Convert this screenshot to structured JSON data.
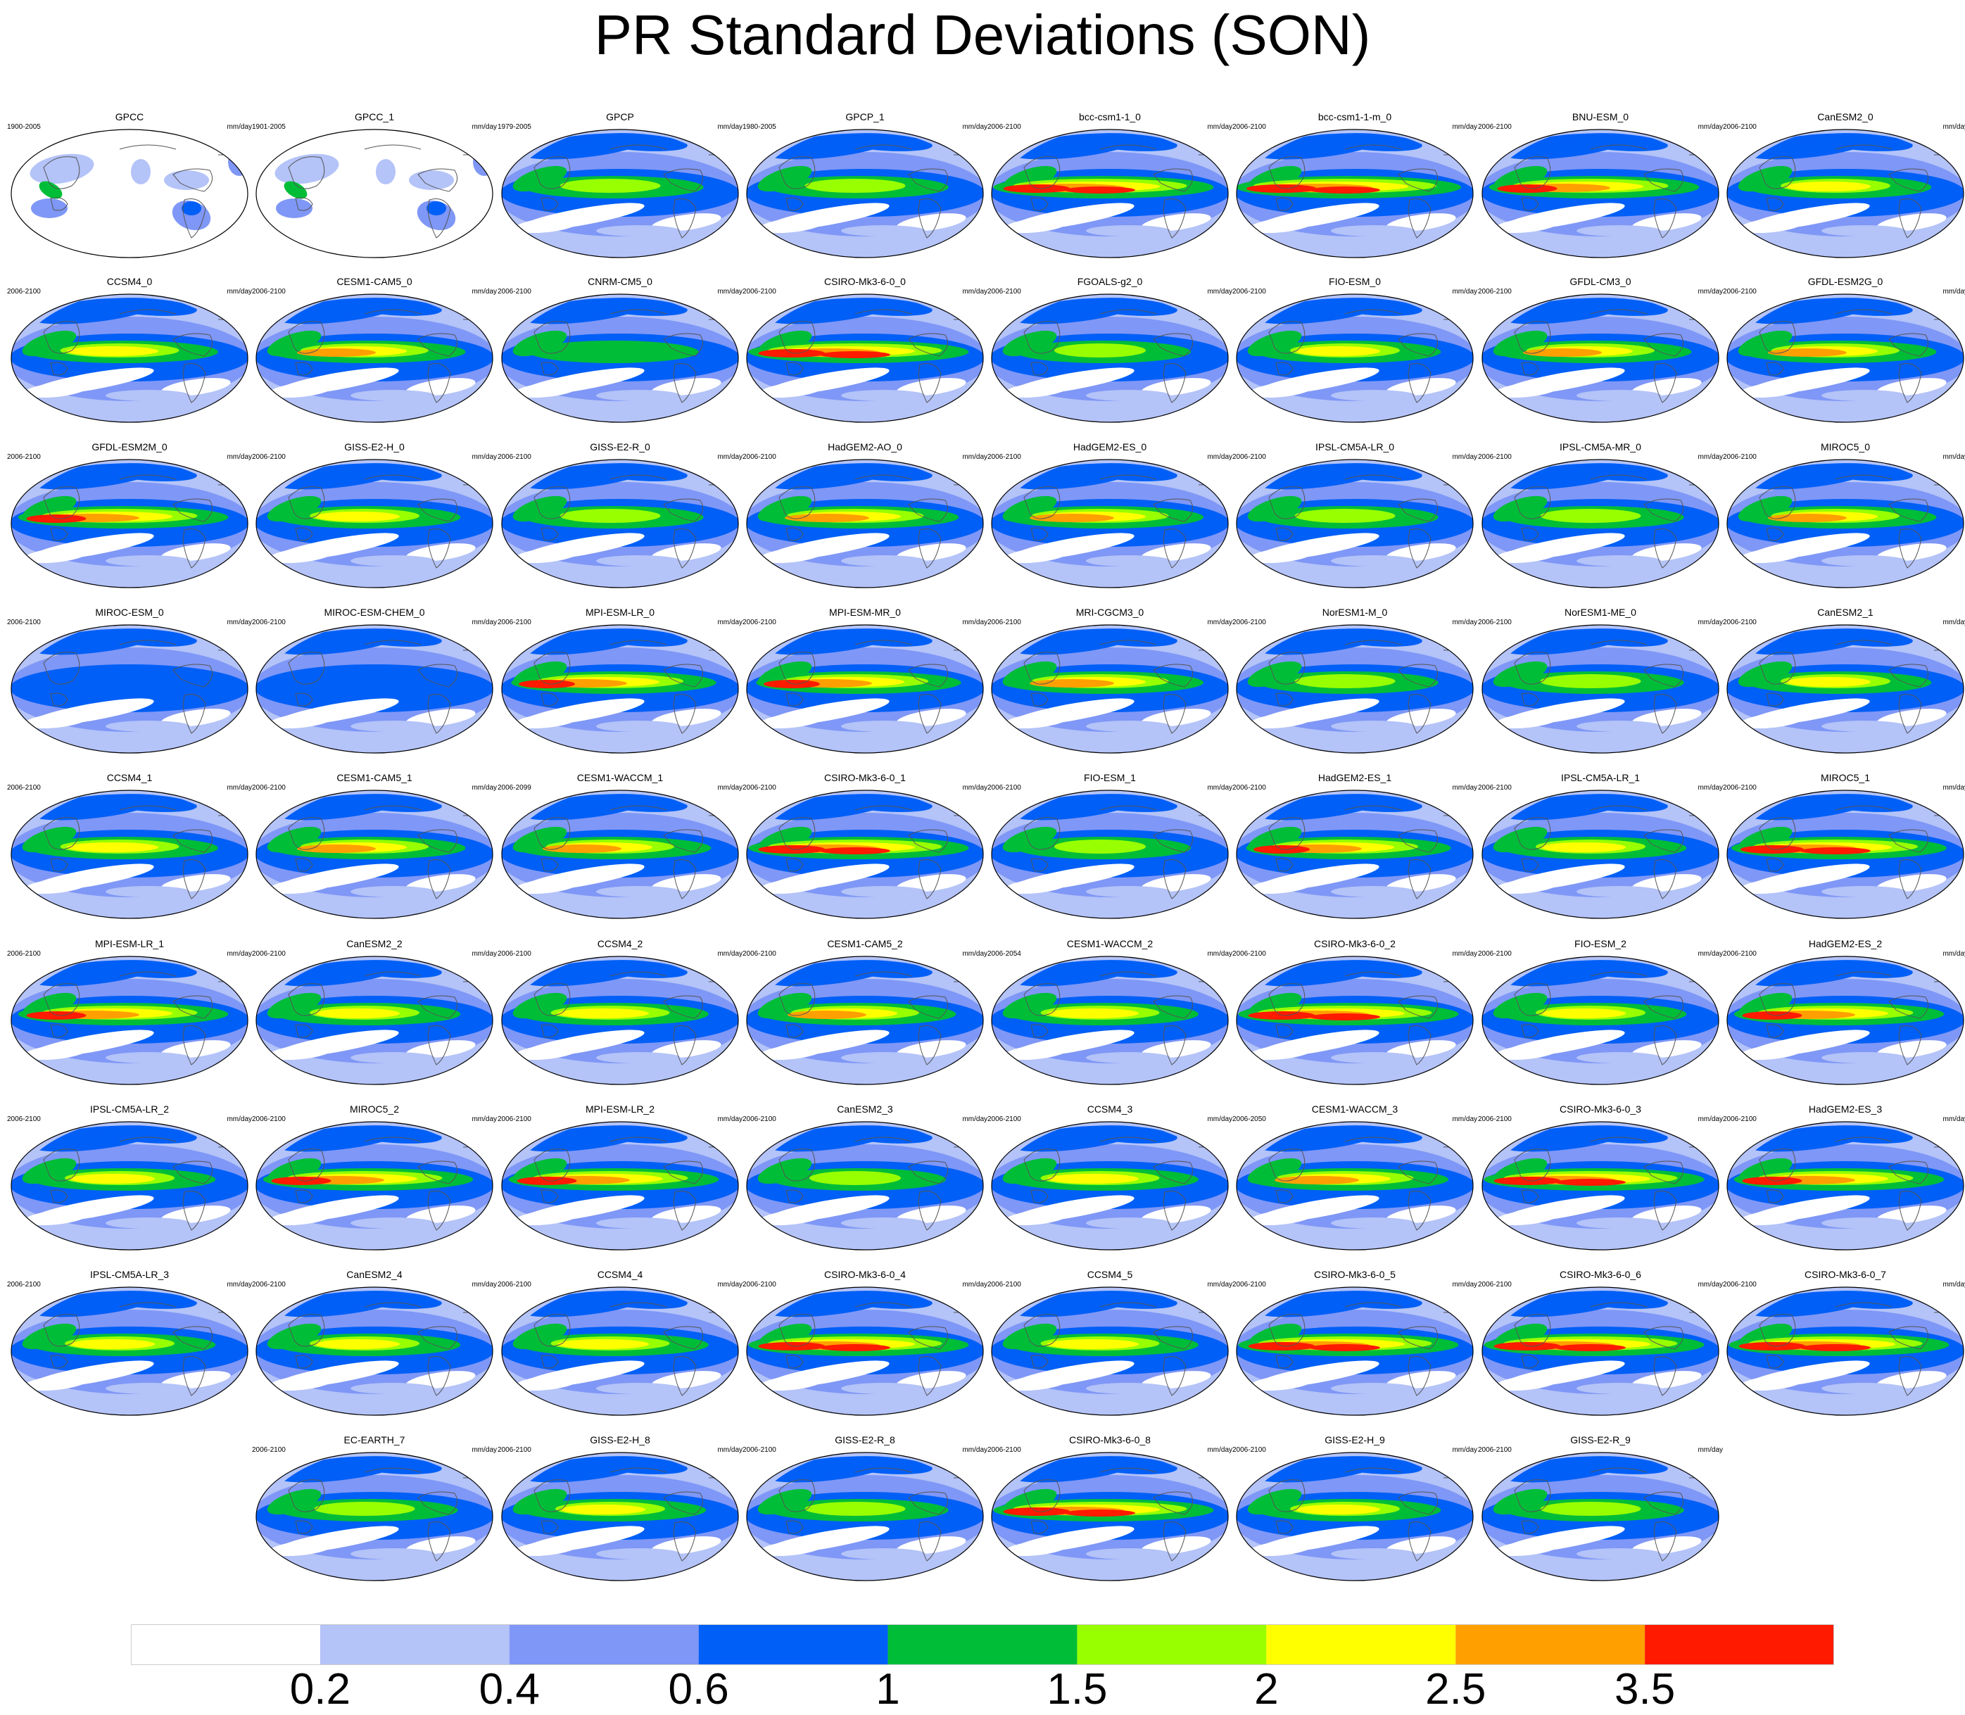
{
  "title": "PR Standard Deviations (SON)",
  "chart_data": {
    "type": "heatmap",
    "title": "PR Standard Deviations (SON)",
    "description_variable": "precipitation standard deviation",
    "units": "mm/day",
    "colorbar": {
      "levels": [
        0.2,
        0.4,
        0.6,
        1,
        1.5,
        2,
        2.5,
        3.5
      ],
      "tick_labels": [
        "0.2",
        "0.4",
        "0.6",
        "1",
        "1.5",
        "2",
        "2.5",
        "3.5"
      ],
      "colors": [
        "#ffffff",
        "#b4c3f8",
        "#7f97f6",
        "#005ff7",
        "#00bd38",
        "#98ff00",
        "#ffff00",
        "#ffa000",
        "#ff1a00"
      ]
    },
    "panels": [
      {
        "name": "GPCC",
        "period": "1900-2005",
        "units": "mm/day",
        "land_only": true,
        "intensity": 0.2
      },
      {
        "name": "GPCC_1",
        "period": "1901-2005",
        "units": "mm/day",
        "land_only": true,
        "intensity": 0.2
      },
      {
        "name": "GPCP",
        "period": "1979-2005",
        "units": "mm/day",
        "intensity": 0.55
      },
      {
        "name": "GPCP_1",
        "period": "1980-2005",
        "units": "mm/day",
        "intensity": 0.55
      },
      {
        "name": "bcc-csm1-1_0",
        "period": "2006-2100",
        "units": "mm/day",
        "intensity": 0.95
      },
      {
        "name": "bcc-csm1-1-m_0",
        "period": "2006-2100",
        "units": "mm/day",
        "intensity": 1.0
      },
      {
        "name": "BNU-ESM_0",
        "period": "2006-2100",
        "units": "mm/day",
        "intensity": 0.85
      },
      {
        "name": "CanESM2_0",
        "period": "2006-2100",
        "units": "mm/day",
        "intensity": 0.6
      },
      {
        "name": "CCSM4_0",
        "period": "2006-2100",
        "units": "mm/day",
        "intensity": 0.65
      },
      {
        "name": "CESM1-CAM5_0",
        "period": "2006-2100",
        "units": "mm/day",
        "intensity": 0.7
      },
      {
        "name": "CNRM-CM5_0",
        "period": "2006-2100",
        "units": "mm/day",
        "intensity": 0.45
      },
      {
        "name": "CSIRO-Mk3-6-0_0",
        "period": "2006-2100",
        "units": "mm/day",
        "intensity": 0.95
      },
      {
        "name": "FGOALS-g2_0",
        "period": "2006-2100",
        "units": "mm/day",
        "intensity": 0.5
      },
      {
        "name": "FIO-ESM_0",
        "period": "2006-2100",
        "units": "mm/day",
        "intensity": 0.6
      },
      {
        "name": "GFDL-CM3_0",
        "period": "2006-2100",
        "units": "mm/day",
        "intensity": 0.7
      },
      {
        "name": "GFDL-ESM2G_0",
        "period": "2006-2100",
        "units": "mm/day",
        "intensity": 0.7
      },
      {
        "name": "GFDL-ESM2M_0",
        "period": "2006-2100",
        "units": "mm/day",
        "intensity": 0.85
      },
      {
        "name": "GISS-E2-H_0",
        "period": "2006-2100",
        "units": "mm/day",
        "intensity": 0.6
      },
      {
        "name": "GISS-E2-R_0",
        "period": "2006-2100",
        "units": "mm/day",
        "intensity": 0.55
      },
      {
        "name": "HadGEM2-AO_0",
        "period": "2006-2100",
        "units": "mm/day",
        "intensity": 0.75
      },
      {
        "name": "HadGEM2-ES_0",
        "period": "2006-2100",
        "units": "mm/day",
        "intensity": 0.75
      },
      {
        "name": "IPSL-CM5A-LR_0",
        "period": "2006-2100",
        "units": "mm/day",
        "intensity": 0.55
      },
      {
        "name": "IPSL-CM5A-MR_0",
        "period": "2006-2100",
        "units": "mm/day",
        "intensity": 0.55
      },
      {
        "name": "MIROC5_0",
        "period": "2006-2100",
        "units": "mm/day",
        "intensity": 0.7
      },
      {
        "name": "MIROC-ESM_0",
        "period": "2006-2100",
        "units": "mm/day",
        "intensity": 0.3
      },
      {
        "name": "MIROC-ESM-CHEM_0",
        "period": "2006-2100",
        "units": "mm/day",
        "intensity": 0.3
      },
      {
        "name": "MPI-ESM-LR_0",
        "period": "2006-2100",
        "units": "mm/day",
        "intensity": 0.8
      },
      {
        "name": "MPI-ESM-MR_0",
        "period": "2006-2100",
        "units": "mm/day",
        "intensity": 0.8
      },
      {
        "name": "MRI-CGCM3_0",
        "period": "2006-2100",
        "units": "mm/day",
        "intensity": 0.75
      },
      {
        "name": "NorESM1-M_0",
        "period": "2006-2100",
        "units": "mm/day",
        "intensity": 0.55
      },
      {
        "name": "NorESM1-ME_0",
        "period": "2006-2100",
        "units": "mm/day",
        "intensity": 0.55
      },
      {
        "name": "CanESM2_1",
        "period": "2006-2100",
        "units": "mm/day",
        "intensity": 0.6
      },
      {
        "name": "CCSM4_1",
        "period": "2006-2100",
        "units": "mm/day",
        "intensity": 0.65
      },
      {
        "name": "CESM1-CAM5_1",
        "period": "2006-2100",
        "units": "mm/day",
        "intensity": 0.7
      },
      {
        "name": "CESM1-WACCM_1",
        "period": "2006-2099",
        "units": "mm/day",
        "intensity": 0.7
      },
      {
        "name": "CSIRO-Mk3-6-0_1",
        "period": "2006-2100",
        "units": "mm/day",
        "intensity": 0.95
      },
      {
        "name": "FIO-ESM_1",
        "period": "2006-2100",
        "units": "mm/day",
        "intensity": 0.5
      },
      {
        "name": "HadGEM2-ES_1",
        "period": "2006-2100",
        "units": "mm/day",
        "intensity": 0.8
      },
      {
        "name": "IPSL-CM5A-LR_1",
        "period": "2006-2100",
        "units": "mm/day",
        "intensity": 0.6
      },
      {
        "name": "MIROC5_1",
        "period": "2006-2100",
        "units": "mm/day",
        "intensity": 0.9
      },
      {
        "name": "MPI-ESM-LR_1",
        "period": "2006-2100",
        "units": "mm/day",
        "intensity": 0.85
      },
      {
        "name": "CanESM2_2",
        "period": "2006-2100",
        "units": "mm/day",
        "intensity": 0.6
      },
      {
        "name": "CCSM4_2",
        "period": "2006-2100",
        "units": "mm/day",
        "intensity": 0.65
      },
      {
        "name": "CESM1-CAM5_2",
        "period": "2006-2100",
        "units": "mm/day",
        "intensity": 0.7
      },
      {
        "name": "CESM1-WACCM_2",
        "period": "2006-2054",
        "units": "mm/day",
        "intensity": 0.65
      },
      {
        "name": "CSIRO-Mk3-6-0_2",
        "period": "2006-2100",
        "units": "mm/day",
        "intensity": 0.95
      },
      {
        "name": "FIO-ESM_2",
        "period": "2006-2100",
        "units": "mm/day",
        "intensity": 0.6
      },
      {
        "name": "HadGEM2-ES_2",
        "period": "2006-2100",
        "units": "mm/day",
        "intensity": 0.85
      },
      {
        "name": "IPSL-CM5A-LR_2",
        "period": "2006-2100",
        "units": "mm/day",
        "intensity": 0.6
      },
      {
        "name": "MIROC5_2",
        "period": "2006-2100",
        "units": "mm/day",
        "intensity": 0.85
      },
      {
        "name": "MPI-ESM-LR_2",
        "period": "2006-2100",
        "units": "mm/day",
        "intensity": 0.85
      },
      {
        "name": "CanESM2_3",
        "period": "2006-2100",
        "units": "mm/day",
        "intensity": 0.5
      },
      {
        "name": "CCSM4_3",
        "period": "2006-2100",
        "units": "mm/day",
        "intensity": 0.65
      },
      {
        "name": "CESM1-WACCM_3",
        "period": "2006-2050",
        "units": "mm/day",
        "intensity": 0.75
      },
      {
        "name": "CSIRO-Mk3-6-0_3",
        "period": "2006-2100",
        "units": "mm/day",
        "intensity": 0.95
      },
      {
        "name": "HadGEM2-ES_3",
        "period": "2006-2100",
        "units": "mm/day",
        "intensity": 0.85
      },
      {
        "name": "IPSL-CM5A-LR_3",
        "period": "2006-2100",
        "units": "mm/day",
        "intensity": 0.6
      },
      {
        "name": "CanESM2_4",
        "period": "2006-2100",
        "units": "mm/day",
        "intensity": 0.6
      },
      {
        "name": "CCSM4_4",
        "period": "2006-2100",
        "units": "mm/day",
        "intensity": 0.65
      },
      {
        "name": "CSIRO-Mk3-6-0_4",
        "period": "2006-2100",
        "units": "mm/day",
        "intensity": 0.95
      },
      {
        "name": "CCSM4_5",
        "period": "2006-2100",
        "units": "mm/day",
        "intensity": 0.65
      },
      {
        "name": "CSIRO-Mk3-6-0_5",
        "period": "2006-2100",
        "units": "mm/day",
        "intensity": 0.95
      },
      {
        "name": "CSIRO-Mk3-6-0_6",
        "period": "2006-2100",
        "units": "mm/day",
        "intensity": 0.95
      },
      {
        "name": "CSIRO-Mk3-6-0_7",
        "period": "2006-2100",
        "units": "mm/day",
        "intensity": 0.95
      },
      {
        "name": "EC-EARTH_7",
        "period": "2006-2100",
        "units": "mm/day",
        "intensity": 0.55
      },
      {
        "name": "GISS-E2-H_8",
        "period": "2006-2100",
        "units": "mm/day",
        "intensity": 0.6
      },
      {
        "name": "GISS-E2-R_8",
        "period": "2006-2100",
        "units": "mm/day",
        "intensity": 0.55
      },
      {
        "name": "CSIRO-Mk3-6-0_8",
        "period": "2006-2100",
        "units": "mm/day",
        "intensity": 0.95
      },
      {
        "name": "GISS-E2-H_9",
        "period": "2006-2100",
        "units": "mm/day",
        "intensity": 0.6
      },
      {
        "name": "GISS-E2-R_9",
        "period": "2006-2100",
        "units": "mm/day",
        "intensity": 0.55
      }
    ]
  }
}
